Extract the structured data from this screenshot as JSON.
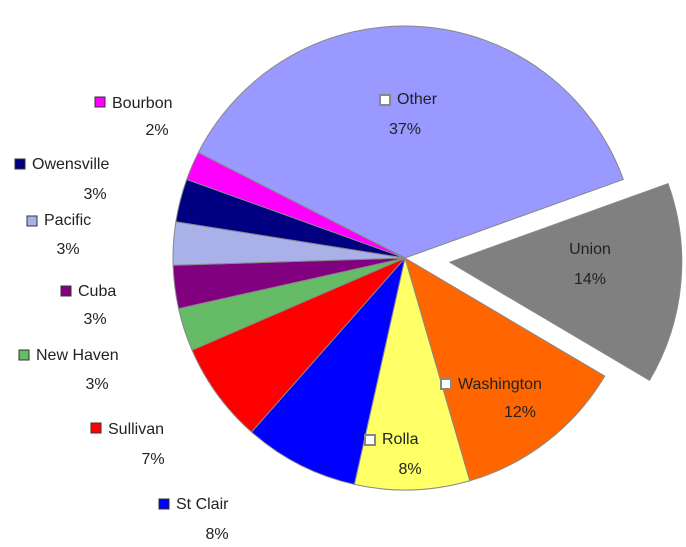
{
  "chart_data": {
    "type": "pie",
    "categories": [
      "Other",
      "Union",
      "Washington",
      "Rolla",
      "St Clair",
      "Sullivan",
      "New Haven",
      "Cuba",
      "Pacific",
      "Owensville",
      "Bourbon"
    ],
    "values": [
      37,
      14,
      12,
      8,
      8,
      7,
      3,
      3,
      3,
      3,
      2
    ],
    "value_labels": [
      "37%",
      "14%",
      "12%",
      "8%",
      "8%",
      "7%",
      "3%",
      "3%",
      "3%",
      "3%",
      "2%"
    ],
    "colors": [
      "#9999ff",
      "#808080",
      "#ff6600",
      "#ffff66",
      "#0000ff",
      "#ff0000",
      "#66bb66",
      "#800080",
      "#aab0e8",
      "#000080",
      "#ff00ff"
    ]
  }
}
